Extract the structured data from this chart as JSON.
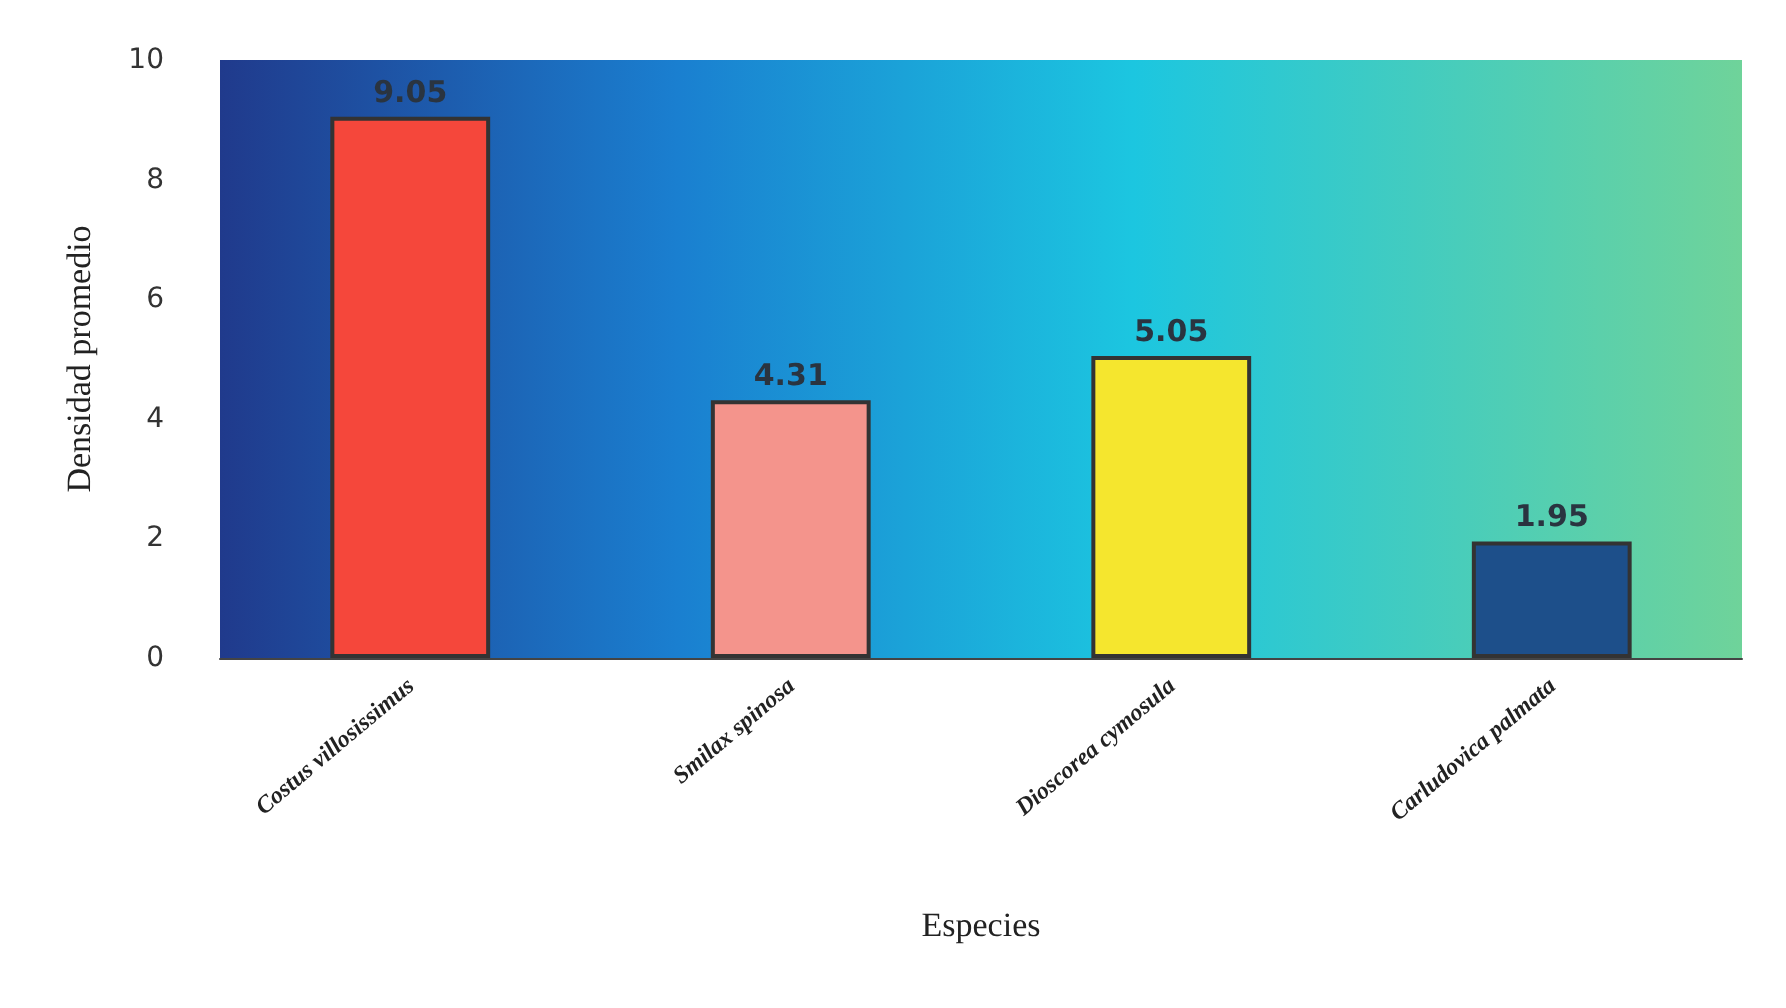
{
  "chart_data": {
    "type": "bar",
    "xlabel": "Especies",
    "ylabel": "Densidad promedio",
    "categories": [
      "Costus villosissimus",
      "Smilax spinosa",
      "Dioscorea cymosula",
      "Carludovica palmata"
    ],
    "values": [
      9.05,
      4.31,
      5.05,
      1.95
    ],
    "colors": [
      "#f5473b",
      "#f4948c",
      "#f5e62e",
      "#1d4f8a"
    ],
    "ylim": [
      0,
      10
    ],
    "yticks": [
      0,
      2,
      4,
      6,
      8,
      10
    ],
    "grid": false,
    "data_labels": true
  }
}
